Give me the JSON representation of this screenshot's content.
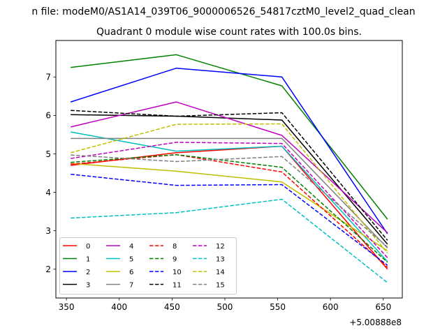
{
  "figure": {
    "suptitle": "n file: modeM0/AS1A14_039T06_9000006526_54817cztM0_level2_quad_clean"
  },
  "chart_data": {
    "type": "line",
    "title": "Quadrant 0 module wise count rates with 100.0s bins.",
    "xlabel": "",
    "ylabel": "",
    "x_offset_label": "+5.00888e8",
    "x": [
      354,
      454,
      554,
      654
    ],
    "xlim": [
      340,
      668
    ],
    "ylim": [
      1.25,
      7.95
    ],
    "xticks": [
      350,
      400,
      450,
      500,
      550,
      600,
      650
    ],
    "yticks": [
      2,
      3,
      4,
      5,
      6,
      7
    ],
    "grid": false,
    "legend_placement": "lower-left",
    "legend_columns": 4,
    "series": [
      {
        "name": "0",
        "color": "#ff0000",
        "style": "solid",
        "values": [
          4.7,
          5.03,
          5.2,
          2.0
        ]
      },
      {
        "name": "1",
        "color": "#008000",
        "style": "solid",
        "values": [
          7.25,
          7.58,
          6.77,
          3.3
        ]
      },
      {
        "name": "2",
        "color": "#0000ff",
        "style": "solid",
        "values": [
          6.35,
          7.23,
          7.0,
          2.92
        ]
      },
      {
        "name": "3",
        "color": "#000000",
        "style": "solid",
        "values": [
          6.02,
          5.98,
          5.88,
          2.65
        ]
      },
      {
        "name": "4",
        "color": "#bf00bf",
        "style": "solid",
        "values": [
          5.7,
          6.35,
          5.48,
          2.95
        ]
      },
      {
        "name": "5",
        "color": "#00bfbf",
        "style": "solid",
        "values": [
          5.57,
          5.07,
          5.2,
          2.2
        ]
      },
      {
        "name": "6",
        "color": "#bfbf00",
        "style": "solid",
        "values": [
          4.75,
          4.55,
          4.27,
          2.48
        ]
      },
      {
        "name": "7",
        "color": "#808080",
        "style": "solid",
        "values": [
          5.4,
          5.4,
          5.4,
          2.55
        ]
      },
      {
        "name": "8",
        "color": "#ff0000",
        "style": "dashed",
        "values": [
          4.73,
          4.98,
          4.53,
          2.05
        ]
      },
      {
        "name": "9",
        "color": "#008000",
        "style": "dashed",
        "values": [
          4.78,
          4.98,
          4.65,
          2.18
        ]
      },
      {
        "name": "10",
        "color": "#0000ff",
        "style": "dashed",
        "values": [
          4.47,
          4.18,
          4.2,
          2.1
        ]
      },
      {
        "name": "11",
        "color": "#000000",
        "style": "dashed",
        "values": [
          6.13,
          5.98,
          6.07,
          2.75
        ]
      },
      {
        "name": "12",
        "color": "#bf00bf",
        "style": "dashed",
        "values": [
          4.88,
          5.3,
          5.27,
          2.3
        ]
      },
      {
        "name": "13",
        "color": "#00bfbf",
        "style": "dashed",
        "values": [
          3.33,
          3.47,
          3.82,
          1.65
        ]
      },
      {
        "name": "14",
        "color": "#bfbf00",
        "style": "dashed",
        "values": [
          5.03,
          5.77,
          5.78,
          2.42
        ]
      },
      {
        "name": "15",
        "color": "#808080",
        "style": "dashed",
        "values": [
          4.97,
          4.8,
          4.93,
          2.58
        ]
      }
    ]
  }
}
